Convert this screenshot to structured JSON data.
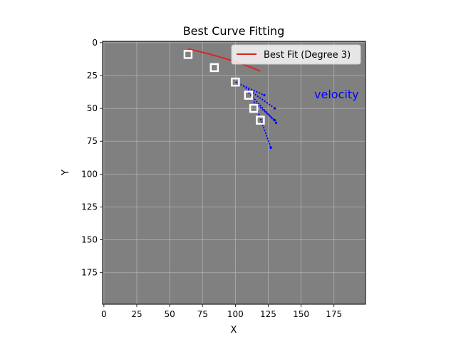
{
  "chart_data": {
    "type": "scatter",
    "title": "Best Curve Fitting",
    "xlabel": "X",
    "ylabel": "Y",
    "xlim": [
      -1,
      199
    ],
    "ylim": [
      199,
      -1
    ],
    "y_inverted": true,
    "grid": true,
    "xticks": [
      0,
      25,
      50,
      75,
      100,
      125,
      150,
      175
    ],
    "yticks": [
      0,
      25,
      50,
      75,
      100,
      125,
      150,
      175
    ],
    "plot_background": "#808080",
    "legend": {
      "placement": "top-right",
      "entries": [
        {
          "label": "Best Fit (Degree 3)",
          "color": "#d62728",
          "marker": "line"
        }
      ]
    },
    "annotation": {
      "text": "velocity",
      "x": 160,
      "y": 39,
      "color": "#0000ff"
    },
    "series": [
      {
        "kind": "points",
        "marker": "hollow-square",
        "color": "#ffffff",
        "points": [
          [
            64,
            9
          ],
          [
            84,
            19
          ],
          [
            100,
            30
          ],
          [
            110,
            40
          ],
          [
            114,
            50
          ],
          [
            119,
            59
          ]
        ]
      },
      {
        "kind": "fit-curve",
        "label": "Best Fit (Degree 3)",
        "color": "#d62728",
        "polynomial": [
          1.235e-05,
          -0.00161,
          0.2835,
          -10.05
        ],
        "x_range": [
          64,
          119
        ]
      },
      {
        "kind": "velocity-segments",
        "color": "#0000ff",
        "segments": [
          [
            [
              100,
              30
            ],
            [
              122,
              40
            ]
          ],
          [
            [
              106,
              33
            ],
            [
              130,
              50
            ]
          ],
          [
            [
              110,
              38
            ],
            [
              131,
              61
            ]
          ],
          [
            [
              114,
              45
            ],
            [
              130,
              59
            ]
          ],
          [
            [
              117,
              52
            ],
            [
              127,
              80
            ]
          ]
        ]
      }
    ]
  }
}
